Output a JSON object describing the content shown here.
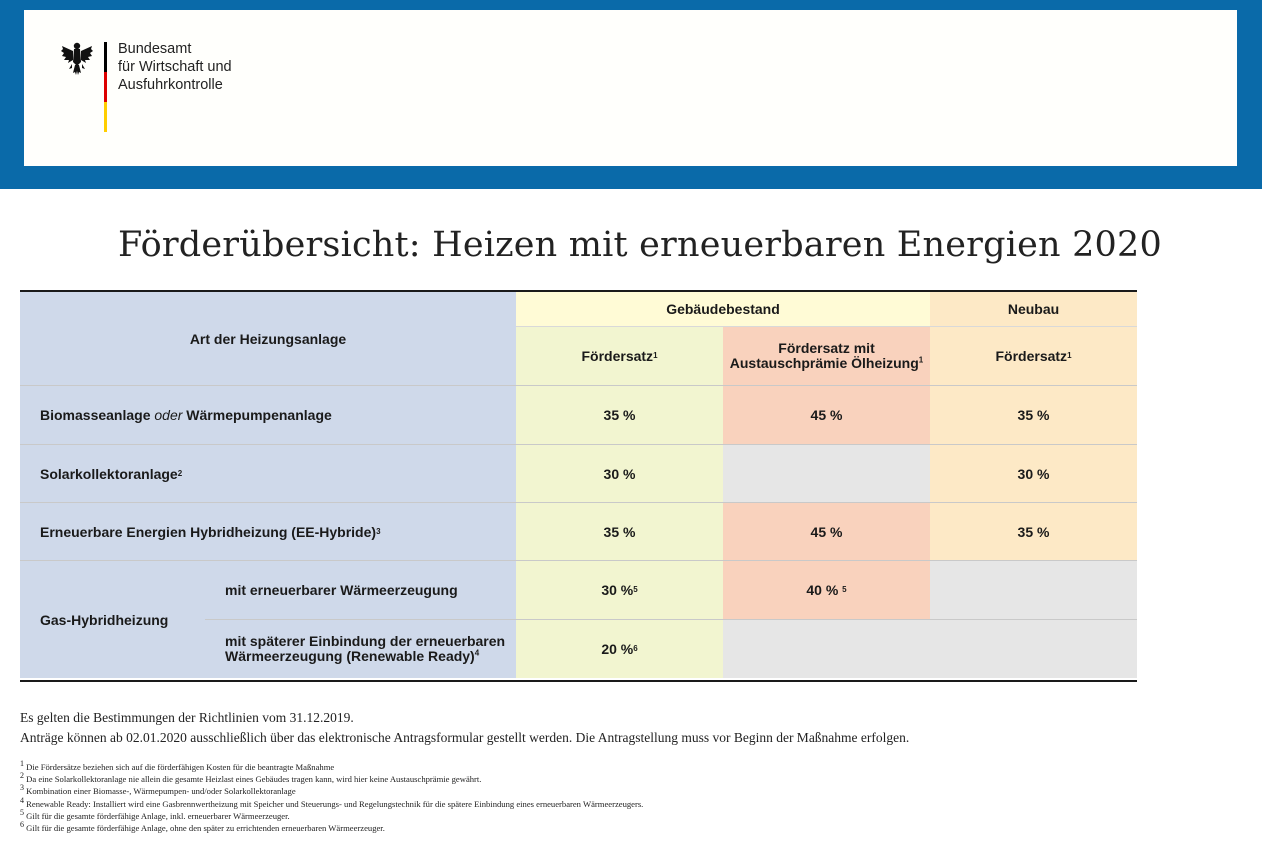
{
  "header": {
    "org_lines": [
      "Bundesamt",
      "für Wirtschaft und",
      "Ausfuhrkontrolle"
    ],
    "logo_icon": "federal-eagle-icon",
    "flag_colors": [
      "#000000",
      "#dd0000",
      "#ffce00"
    ],
    "accent_color": "#0a6aa9"
  },
  "title": "Förderübersicht: Heizen mit erneuerbaren Energien 2020",
  "table": {
    "col_art": "Art der Heizungsanlage",
    "group_bestand": "Gebäudebestand",
    "group_neubau": "Neubau",
    "sub_foerdersatz": "Fördersatz",
    "sub_foerdersatz_sup": "1",
    "sub_austausch_line1": "Fördersatz mit",
    "sub_austausch_line2": "Austauschprämie Ölheizung",
    "sub_austausch_sup": "1",
    "sub_neubau": "Fördersatz",
    "sub_neubau_sup": "1",
    "rows": [
      {
        "label_part1": "Biomasseanlage ",
        "label_italic": "oder",
        "label_part2": " Wärmepumpenanlage",
        "bestand": "35 %",
        "austausch": "45 %",
        "neubau": "35 %"
      },
      {
        "label": "Solarkollektoranlage",
        "label_sup": "2",
        "bestand": "30 %",
        "neubau": "30 %"
      },
      {
        "label": "Erneuerbare Energien Hybridheizung (EE-Hybride)",
        "label_sup": "3",
        "bestand": "35 %",
        "austausch": "45 %",
        "neubau": "35 %"
      }
    ],
    "gas": {
      "label": "Gas-Hybridheizung",
      "sub1_label": "mit erneuerbarer Wärmeerzeugung",
      "sub1_bestand": "30 %",
      "sub1_bestand_sup": "5",
      "sub1_austausch": "40 %",
      "sub1_austausch_sup": "5",
      "sub2_line1": "mit späterer Einbindung der erneuerbaren",
      "sub2_line2": "Wärmeerzeugung (Renewable Ready)",
      "sub2_sup": "4",
      "sub2_bestand": "20 %",
      "sub2_bestand_sup": "6"
    }
  },
  "notes": [
    "Es gelten die Bestimmungen der Richtlinien vom 31.12.2019.",
    "Anträge können ab 02.01.2020 ausschließlich über das elektronische Antragsformular gestellt werden. Die Antragstellung muss vor Beginn der Maßnahme erfolgen."
  ],
  "footnotes": [
    {
      "num": "1",
      "text": " Die Fördersätze beziehen sich auf die förderfähigen Kosten für die beantragte Maßnahme"
    },
    {
      "num": "2",
      "text": " Da eine Solarkollektoranlage nie allein die gesamte Heizlast eines Gebäudes tragen kann, wird hier keine Austauschprämie gewährt."
    },
    {
      "num": "3",
      "text": " Kombination einer Biomasse-, Wärmepumpen- und/oder Solarkollektoranlage"
    },
    {
      "num": "4",
      "text": " Renewable Ready: Installiert wird eine Gasbrennwertheizung mit Speicher und Steuerungs- und Regelungstechnik für die spätere Einbindung eines erneuerbaren Wärmeerzeugers."
    },
    {
      "num": "5",
      "text": " Gilt für die gesamte förderfähige Anlage, inkl. erneuerbarer Wärmeerzeuger."
    },
    {
      "num": "6",
      "text": " Gilt für die gesamte förderfähige Anlage, ohne den später zu errichtenden erneuerbaren Wärmeerzeuger."
    }
  ]
}
